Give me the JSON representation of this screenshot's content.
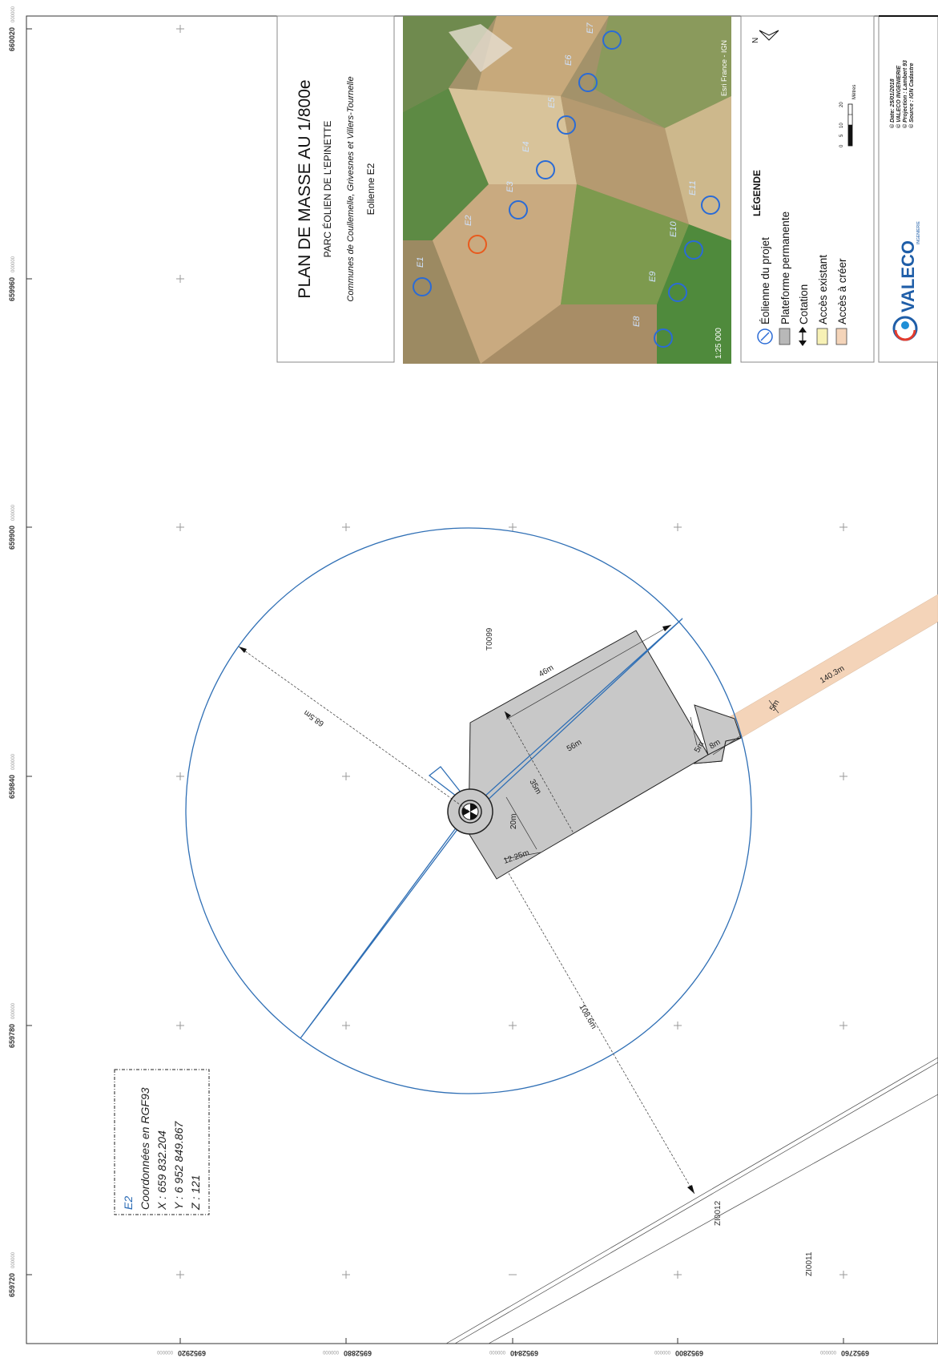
{
  "title": {
    "main": "PLAN DE MASSE AU 1/800e",
    "park": "PARC ÉOLIEN DE L'EPINETTE",
    "communes": "Communes de Coullemelle, Grivesnes et Villers-Tournelle",
    "turbine": "Eolienne E2"
  },
  "grid": {
    "left_labels": [
      "660020",
      "659960",
      "659900",
      "659840",
      "659780",
      "659720"
    ],
    "left_suffix": "000000",
    "bottom_labels": [
      "6952920",
      "6952880",
      "6952840",
      "6952800",
      "6952760"
    ],
    "bottom_prefix": "000000"
  },
  "legend": {
    "heading": "LÉGENDE",
    "items": [
      {
        "label": "Éolienne du projet",
        "symbol": "turbine-icon"
      },
      {
        "label": "Plateforme permanente",
        "symbol": "gray-swatch",
        "color": "#b8b8b8"
      },
      {
        "label": "Cotation",
        "symbol": "double-arrow-icon"
      },
      {
        "label": "Accès existant",
        "symbol": "yellow-swatch",
        "color": "#f7f1b5"
      },
      {
        "label": "Accès à créer",
        "symbol": "peach-swatch",
        "color": "#f4d4b9"
      }
    ],
    "north": "N",
    "scale": {
      "ticks": [
        "0",
        "5",
        "10",
        "20"
      ],
      "unit": "Mètres"
    }
  },
  "inset": {
    "scale": "1:25 000",
    "credit": "Esri France - IGN",
    "turbines": [
      "E1",
      "E2",
      "E3",
      "E4",
      "E5",
      "E6",
      "E7",
      "E8",
      "E9",
      "E10",
      "E11"
    ],
    "highlight": "E2",
    "highlight_color": "#e85a1d",
    "turbine_color": "#2a6bd6"
  },
  "footer": {
    "lines": [
      "© Date: 25/01/2018",
      "© VALECO INGENIERIE",
      "© Projection : Lambert 93",
      "© Source : IGN Cadastre"
    ],
    "logo_text": "VALECO",
    "logo_sub": "INGENIERIE"
  },
  "coords": {
    "id": "E2",
    "heading": "Coordonnées en RGF93",
    "x": "X : 659 832.204",
    "y": "Y : 6 952 849.867",
    "z": "Z : 121"
  },
  "dimensions": {
    "d_46": "46m",
    "d_56": "56m",
    "d_35": "35m",
    "d_20": "20m",
    "d_1225": "12.25m",
    "d_8": "8m",
    "d_5a": "5m",
    "d_5b": "5m",
    "d_685": "68.5m",
    "d_1086": "108.6m",
    "d_1403": "140.3m"
  },
  "parcels": [
    "T0099",
    "ZI0012",
    "ZI0011"
  ],
  "colors": {
    "blue": "#2f6fb5",
    "platform": "#c8c8c8",
    "access": "#f4d4b9"
  }
}
